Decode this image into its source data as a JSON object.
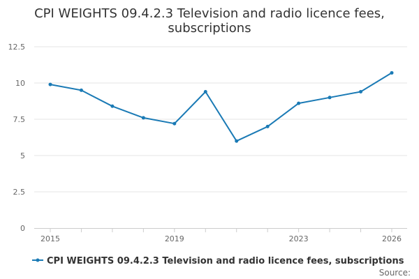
{
  "chart_data": {
    "type": "line",
    "title_lines": [
      "CPI WEIGHTS 09.4.2.3 Television and radio licence fees,",
      "subscriptions"
    ],
    "xlabel": "",
    "ylabel": "",
    "x": [
      2015,
      2016,
      2017,
      2018,
      2019,
      2020,
      2021,
      2022,
      2023,
      2024,
      2025,
      2026
    ],
    "series": [
      {
        "name": "CPI WEIGHTS 09.4.2.3 Television and radio licence fees, subscriptions",
        "color": "#1a7ab5",
        "values": [
          9.9,
          9.5,
          8.4,
          7.6,
          7.2,
          9.4,
          6.0,
          7.0,
          8.6,
          9.0,
          9.4,
          10.7
        ]
      }
    ],
    "ylim": [
      0,
      12.5
    ],
    "yticks": [
      0,
      2.5,
      5,
      7.5,
      10,
      12.5
    ],
    "ytick_labels": [
      "0",
      "2.5",
      "5",
      "7.5",
      "10",
      "12.5"
    ],
    "xticks": [
      2015,
      2019,
      2023,
      2026
    ],
    "xtick_labels": [
      "2015",
      "2019",
      "2023",
      "2026"
    ],
    "grid": true,
    "legend_position": "bottom",
    "source_label": "Source:"
  }
}
